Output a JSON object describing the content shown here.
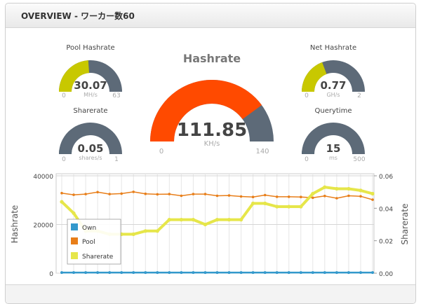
{
  "panel": {
    "title": "OVERVIEW - ワーカー数60"
  },
  "gauges": {
    "pool_hashrate": {
      "title": "Pool Hashrate",
      "value": "30.07",
      "unit": "MH/s",
      "min": "0",
      "max": "63",
      "level": 0.477,
      "color": "#c8c800"
    },
    "sharerate": {
      "title": "Sharerate",
      "value": "0.05",
      "unit": "shares/s",
      "min": "0",
      "max": "1",
      "level": 0.05,
      "color": "#5a6a78"
    },
    "hashrate": {
      "title": "Hashrate",
      "value": "111.85",
      "unit": "KH/s",
      "min": "0",
      "max": "140",
      "level": 0.799,
      "color": "#ff4a00"
    },
    "net_hashrate": {
      "title": "Net Hashrate",
      "value": "0.77",
      "unit": "GH/s",
      "min": "0",
      "max": "2",
      "level": 0.385,
      "color": "#c8c800"
    },
    "querytime": {
      "title": "Querytime",
      "value": "15",
      "unit": "ms",
      "min": "0",
      "max": "500",
      "level": 0.03,
      "color": "#5a6a78"
    }
  },
  "colors": {
    "gauge_track": "#5d6a78",
    "own": "#3399cc",
    "pool": "#e87e19",
    "sharerate": "#e6e64a"
  },
  "chart_data": {
    "type": "line",
    "xlabel": "",
    "ylabel": "Hashrate",
    "y2label": "Sharerate",
    "ylim": [
      0,
      40000
    ],
    "y2lim": [
      0,
      0.06
    ],
    "yticks": [
      "0",
      "20000",
      "40000"
    ],
    "y2ticks": [
      "0.00",
      "0.02",
      "0.04",
      "0.06"
    ],
    "grid": true,
    "legend_position": "bottom-left",
    "series": [
      {
        "name": "Own",
        "axis": "left",
        "values": [
          250,
          250,
          250,
          250,
          250,
          250,
          250,
          250,
          250,
          250,
          250,
          250,
          250,
          250,
          250,
          250,
          250,
          250,
          250,
          250,
          250,
          250,
          250,
          250,
          250,
          250,
          250
        ]
      },
      {
        "name": "Pool",
        "axis": "left",
        "values": [
          32900,
          32200,
          32500,
          33300,
          32500,
          32700,
          33400,
          32600,
          32400,
          32500,
          31800,
          32500,
          32500,
          31800,
          31900,
          31500,
          31300,
          32100,
          31400,
          31400,
          31300,
          31000,
          31700,
          30800,
          31800,
          31600,
          30200
        ]
      },
      {
        "name": "Sharerate",
        "axis": "right",
        "values": [
          0.044,
          0.037,
          0.026,
          0.026,
          0.024,
          0.024,
          0.024,
          0.026,
          0.026,
          0.033,
          0.033,
          0.033,
          0.03,
          0.033,
          0.033,
          0.033,
          0.043,
          0.043,
          0.041,
          0.041,
          0.041,
          0.049,
          0.053,
          0.052,
          0.052,
          0.051,
          0.049
        ]
      }
    ]
  }
}
